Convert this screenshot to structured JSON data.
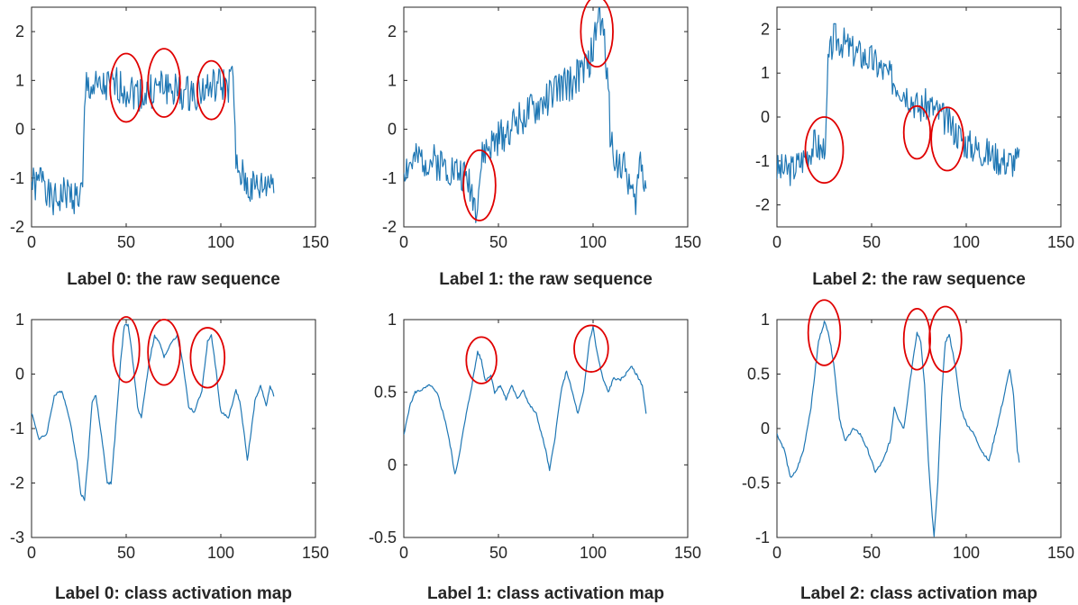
{
  "colors": {
    "series": "#1f77b4",
    "highlight": "#e00000",
    "axis": "#262626"
  },
  "chart_data": [
    {
      "type": "line",
      "title": "Label 0: the raw sequence",
      "xlim": [
        0,
        150
      ],
      "ylim": [
        -2,
        2.5
      ],
      "xticks": [
        0,
        50,
        100,
        150
      ],
      "xtick_labels": [
        "0",
        "50",
        "100",
        "150"
      ],
      "yticks": [
        -2,
        -1,
        0,
        1,
        2
      ],
      "ytick_labels": [
        "-2",
        "-1",
        "0",
        "1",
        "2"
      ],
      "shape": "plateau",
      "seed": 1,
      "key_points": [
        [
          0,
          -1.1
        ],
        [
          3,
          -1.2
        ],
        [
          6,
          -0.8
        ],
        [
          9,
          -1.4
        ],
        [
          12,
          -1.5
        ],
        [
          18,
          -1.3
        ],
        [
          24,
          -1.4
        ],
        [
          27,
          -1.3
        ],
        [
          28,
          0.3
        ],
        [
          29,
          0.9
        ],
        [
          35,
          0.8
        ],
        [
          45,
          0.9
        ],
        [
          52,
          0.8
        ],
        [
          60,
          0.7
        ],
        [
          70,
          0.9
        ],
        [
          80,
          0.7
        ],
        [
          90,
          0.8
        ],
        [
          100,
          0.9
        ],
        [
          105,
          0.9
        ],
        [
          106,
          1.5
        ],
        [
          107,
          0.3
        ],
        [
          108,
          -0.8
        ],
        [
          115,
          -1.2
        ],
        [
          122,
          -1.2
        ],
        [
          128,
          -1.0
        ]
      ],
      "annotations": [
        {
          "x": 50,
          "y": 0.85,
          "rx": 8.5,
          "ry": 0.7
        },
        {
          "x": 70,
          "y": 0.95,
          "rx": 8.5,
          "ry": 0.7
        },
        {
          "x": 95,
          "y": 0.8,
          "rx": 7.5,
          "ry": 0.6
        }
      ]
    },
    {
      "type": "line",
      "title": "Label 1: the raw sequence",
      "xlim": [
        0,
        150
      ],
      "ylim": [
        -2,
        2.5
      ],
      "xticks": [
        0,
        50,
        100,
        150
      ],
      "xtick_labels": [
        "0",
        "50",
        "100",
        "150"
      ],
      "yticks": [
        -2,
        -1,
        0,
        1,
        2
      ],
      "ytick_labels": [
        "-2",
        "-1",
        "0",
        "1",
        "2"
      ],
      "shape": "ramp",
      "seed": 2,
      "key_points": [
        [
          0,
          -0.8
        ],
        [
          10,
          -0.6
        ],
        [
          20,
          -0.7
        ],
        [
          30,
          -0.9
        ],
        [
          35,
          -1.1
        ],
        [
          38,
          -1.6
        ],
        [
          42,
          -0.5
        ],
        [
          50,
          -0.2
        ],
        [
          60,
          0.2
        ],
        [
          70,
          0.4
        ],
        [
          80,
          0.8
        ],
        [
          90,
          1.0
        ],
        [
          97,
          1.3
        ],
        [
          100,
          1.6
        ],
        [
          103,
          2.4
        ],
        [
          106,
          1.8
        ],
        [
          108,
          1.0
        ],
        [
          109,
          -0.2
        ],
        [
          112,
          -0.6
        ],
        [
          118,
          -0.9
        ],
        [
          122,
          -1.6
        ],
        [
          125,
          -0.6
        ],
        [
          128,
          -1.2
        ]
      ],
      "annotations": [
        {
          "x": 40,
          "y": -1.15,
          "rx": 8.5,
          "ry": 0.72
        },
        {
          "x": 102,
          "y": 2.0,
          "rx": 8.5,
          "ry": 0.72
        }
      ]
    },
    {
      "type": "line",
      "title": "Label 2: the raw sequence",
      "xlim": [
        0,
        150
      ],
      "ylim": [
        -2.5,
        2.5
      ],
      "xticks": [
        0,
        50,
        100,
        150
      ],
      "xtick_labels": [
        "0",
        "50",
        "100",
        "150"
      ],
      "yticks": [
        -2,
        -1,
        0,
        1,
        2
      ],
      "ytick_labels": [
        "-2",
        "-1",
        "0",
        "1",
        "2"
      ],
      "shape": "triangle",
      "seed": 3,
      "key_points": [
        [
          0,
          -1.2
        ],
        [
          8,
          -1.2
        ],
        [
          15,
          -0.9
        ],
        [
          20,
          -0.6
        ],
        [
          24,
          -0.8
        ],
        [
          26,
          -0.4
        ],
        [
          27,
          1.2
        ],
        [
          30,
          1.8
        ],
        [
          35,
          1.7
        ],
        [
          40,
          1.5
        ],
        [
          50,
          1.3
        ],
        [
          60,
          0.9
        ],
        [
          70,
          0.5
        ],
        [
          75,
          0.2
        ],
        [
          80,
          0.3
        ],
        [
          90,
          -0.1
        ],
        [
          100,
          -0.6
        ],
        [
          110,
          -0.8
        ],
        [
          120,
          -1.0
        ],
        [
          128,
          -1.0
        ]
      ],
      "annotations": [
        {
          "x": 25,
          "y": -0.75,
          "rx": 10,
          "ry": 0.75
        },
        {
          "x": 74,
          "y": -0.35,
          "rx": 7,
          "ry": 0.6
        },
        {
          "x": 90,
          "y": -0.5,
          "rx": 8.5,
          "ry": 0.72
        }
      ]
    },
    {
      "type": "line",
      "title": "Label 0: class activation map",
      "xlim": [
        0,
        150
      ],
      "ylim": [
        -3,
        1
      ],
      "xticks": [
        0,
        50,
        100,
        150
      ],
      "xtick_labels": [
        "0",
        "50",
        "100",
        "150"
      ],
      "yticks": [
        -3,
        -2,
        -1,
        0,
        1
      ],
      "ytick_labels": [
        "-3",
        "-2",
        "-1",
        "0",
        "1"
      ],
      "shape": "smooth",
      "seed": 4,
      "key_points": [
        [
          0,
          -0.7
        ],
        [
          4,
          -1.2
        ],
        [
          8,
          -1.1
        ],
        [
          12,
          -0.4
        ],
        [
          16,
          -0.3
        ],
        [
          20,
          -0.8
        ],
        [
          24,
          -1.6
        ],
        [
          26,
          -2.2
        ],
        [
          28,
          -2.3
        ],
        [
          30,
          -1.5
        ],
        [
          32,
          -0.5
        ],
        [
          34,
          -0.4
        ],
        [
          38,
          -1.4
        ],
        [
          40,
          -2.0
        ],
        [
          42,
          -2.0
        ],
        [
          44,
          -1.2
        ],
        [
          47,
          0.2
        ],
        [
          49,
          0.9
        ],
        [
          51,
          0.9
        ],
        [
          53,
          0.4
        ],
        [
          56,
          -0.6
        ],
        [
          58,
          -0.8
        ],
        [
          62,
          0.2
        ],
        [
          65,
          0.7
        ],
        [
          68,
          0.55
        ],
        [
          70,
          0.3
        ],
        [
          74,
          0.6
        ],
        [
          77,
          0.7
        ],
        [
          80,
          0.2
        ],
        [
          83,
          -0.6
        ],
        [
          86,
          -0.7
        ],
        [
          90,
          -0.3
        ],
        [
          93,
          0.6
        ],
        [
          95,
          0.7
        ],
        [
          97,
          0.2
        ],
        [
          100,
          -0.7
        ],
        [
          104,
          -0.8
        ],
        [
          108,
          -0.3
        ],
        [
          110,
          -0.5
        ],
        [
          112,
          -1.0
        ],
        [
          114,
          -1.6
        ],
        [
          118,
          -0.5
        ],
        [
          121,
          -0.2
        ],
        [
          124,
          -0.6
        ],
        [
          126,
          -0.2
        ],
        [
          128,
          -0.4
        ]
      ],
      "annotations": [
        {
          "x": 50,
          "y": 0.45,
          "rx": 7,
          "ry": 0.6
        },
        {
          "x": 70,
          "y": 0.4,
          "rx": 8.5,
          "ry": 0.6
        },
        {
          "x": 93,
          "y": 0.3,
          "rx": 9,
          "ry": 0.55
        }
      ]
    },
    {
      "type": "line",
      "title": "Label 1: class activation map",
      "xlim": [
        0,
        150
      ],
      "ylim": [
        -0.5,
        1
      ],
      "xticks": [
        0,
        50,
        100,
        150
      ],
      "xtick_labels": [
        "0",
        "50",
        "100",
        "150"
      ],
      "yticks": [
        -0.5,
        0,
        0.5,
        1
      ],
      "ytick_labels": [
        "-0.5",
        "0",
        "0.5",
        "1"
      ],
      "shape": "smooth",
      "seed": 5,
      "key_points": [
        [
          0,
          0.2
        ],
        [
          3,
          0.4
        ],
        [
          6,
          0.5
        ],
        [
          10,
          0.52
        ],
        [
          14,
          0.55
        ],
        [
          18,
          0.48
        ],
        [
          22,
          0.3
        ],
        [
          25,
          0.1
        ],
        [
          27,
          -0.07
        ],
        [
          29,
          0.05
        ],
        [
          33,
          0.35
        ],
        [
          36,
          0.55
        ],
        [
          39,
          0.78
        ],
        [
          41,
          0.72
        ],
        [
          43,
          0.58
        ],
        [
          46,
          0.62
        ],
        [
          48,
          0.5
        ],
        [
          51,
          0.55
        ],
        [
          54,
          0.45
        ],
        [
          57,
          0.55
        ],
        [
          60,
          0.45
        ],
        [
          63,
          0.52
        ],
        [
          66,
          0.42
        ],
        [
          70,
          0.35
        ],
        [
          72,
          0.25
        ],
        [
          75,
          0.1
        ],
        [
          77,
          -0.04
        ],
        [
          80,
          0.2
        ],
        [
          83,
          0.5
        ],
        [
          86,
          0.65
        ],
        [
          89,
          0.5
        ],
        [
          92,
          0.35
        ],
        [
          95,
          0.5
        ],
        [
          98,
          0.85
        ],
        [
          100,
          0.95
        ],
        [
          102,
          0.78
        ],
        [
          105,
          0.6
        ],
        [
          108,
          0.5
        ],
        [
          111,
          0.6
        ],
        [
          114,
          0.58
        ],
        [
          117,
          0.62
        ],
        [
          120,
          0.68
        ],
        [
          123,
          0.62
        ],
        [
          126,
          0.55
        ],
        [
          128,
          0.35
        ]
      ],
      "annotations": [
        {
          "x": 41,
          "y": 0.72,
          "rx": 8,
          "ry": 0.16
        },
        {
          "x": 99,
          "y": 0.8,
          "rx": 9,
          "ry": 0.16
        }
      ]
    },
    {
      "type": "line",
      "title": "Label 2: class activation map",
      "xlim": [
        0,
        150
      ],
      "ylim": [
        -1,
        1
      ],
      "xticks": [
        0,
        50,
        100,
        150
      ],
      "xtick_labels": [
        "0",
        "50",
        "100",
        "150"
      ],
      "yticks": [
        -1,
        -0.5,
        0,
        0.5,
        1
      ],
      "ytick_labels": [
        "-1",
        "-0.5",
        "0",
        "0.5",
        "1"
      ],
      "shape": "smooth",
      "seed": 6,
      "key_points": [
        [
          0,
          -0.05
        ],
        [
          4,
          -0.2
        ],
        [
          7,
          -0.45
        ],
        [
          10,
          -0.4
        ],
        [
          14,
          -0.2
        ],
        [
          18,
          0.2
        ],
        [
          22,
          0.8
        ],
        [
          25,
          0.98
        ],
        [
          27,
          0.9
        ],
        [
          30,
          0.6
        ],
        [
          33,
          0.1
        ],
        [
          36,
          -0.12
        ],
        [
          40,
          0.0
        ],
        [
          44,
          -0.05
        ],
        [
          48,
          -0.2
        ],
        [
          52,
          -0.4
        ],
        [
          56,
          -0.3
        ],
        [
          60,
          -0.1
        ],
        [
          62,
          0.2
        ],
        [
          64,
          0.1
        ],
        [
          67,
          0.0
        ],
        [
          70,
          0.4
        ],
        [
          74,
          0.88
        ],
        [
          76,
          0.8
        ],
        [
          78,
          0.4
        ],
        [
          80,
          -0.3
        ],
        [
          82,
          -0.8
        ],
        [
          83,
          -1.0
        ],
        [
          85,
          -0.5
        ],
        [
          87,
          0.3
        ],
        [
          89,
          0.8
        ],
        [
          91,
          0.86
        ],
        [
          94,
          0.6
        ],
        [
          97,
          0.2
        ],
        [
          100,
          0.05
        ],
        [
          104,
          -0.05
        ],
        [
          108,
          -0.2
        ],
        [
          112,
          -0.3
        ],
        [
          116,
          0.0
        ],
        [
          120,
          0.3
        ],
        [
          123,
          0.55
        ],
        [
          125,
          0.3
        ],
        [
          127,
          -0.2
        ],
        [
          128,
          -0.3
        ]
      ],
      "annotations": [
        {
          "x": 25,
          "y": 0.88,
          "rx": 8.5,
          "ry": 0.3
        },
        {
          "x": 74,
          "y": 0.82,
          "rx": 7,
          "ry": 0.28
        },
        {
          "x": 89,
          "y": 0.82,
          "rx": 8.5,
          "ry": 0.3
        }
      ]
    }
  ]
}
